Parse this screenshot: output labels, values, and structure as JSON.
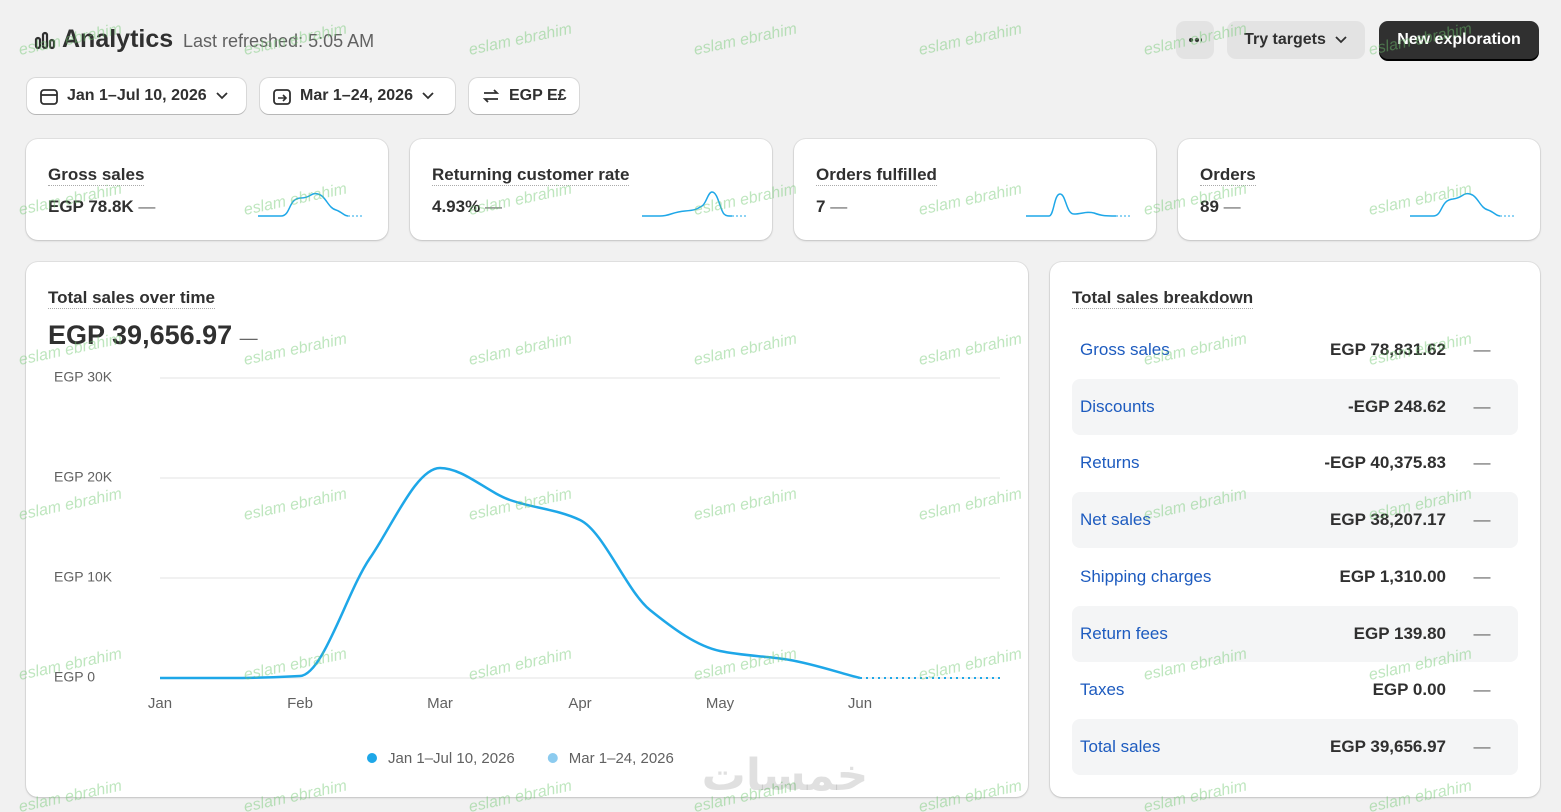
{
  "header": {
    "title": "Analytics",
    "last_refreshed": "Last refreshed: 5:05 AM",
    "try_targets": "Try targets",
    "new_exploration": "New exploration"
  },
  "filters": [
    "Jan 1–Jul 10, 2026",
    "Mar 1–24, 2026",
    "EGP E£"
  ],
  "kpis": [
    {
      "label": "Gross sales",
      "value": "EGP 78.8K",
      "change": "—"
    },
    {
      "label": "Returning customer rate",
      "value": "4.93%",
      "change": "—"
    },
    {
      "label": "Orders fulfilled",
      "value": "7",
      "change": "—"
    },
    {
      "label": "Orders",
      "value": "89",
      "change": "—"
    }
  ],
  "chart_data": {
    "type": "line",
    "title": "Total sales over time",
    "total": "EGP 39,656.97",
    "change": "—",
    "categories": [
      "Jan",
      null,
      "Feb",
      null,
      "Mar",
      null,
      "Apr",
      null,
      "May",
      null,
      "Jun"
    ],
    "series": [
      {
        "name": "Jan 1–Jul 10, 2026",
        "color": "#1ea7e8",
        "values": [
          0,
          0,
          200,
          12000,
          21000,
          17800,
          15800,
          6800,
          2700,
          1800,
          0
        ]
      },
      {
        "name": "Mar 1–24, 2026",
        "color": "#8ccbef"
      }
    ],
    "ylim": [
      0,
      30000
    ],
    "yticks": [
      {
        "value": 0,
        "label": "EGP 0"
      },
      {
        "value": 10000,
        "label": "EGP 10K"
      },
      {
        "value": 20000,
        "label": "EGP 20K"
      },
      {
        "value": 30000,
        "label": "EGP 30K"
      }
    ],
    "grid": true
  },
  "breakdown": {
    "title": "Total sales breakdown",
    "rows": [
      {
        "label": "Gross sales",
        "value": "EGP 78,831.62",
        "change": "—"
      },
      {
        "label": "Discounts",
        "value": "-EGP 248.62",
        "change": "—"
      },
      {
        "label": "Returns",
        "value": "-EGP 40,375.83",
        "change": "—"
      },
      {
        "label": "Net sales",
        "value": "EGP 38,207.17",
        "change": "—"
      },
      {
        "label": "Shipping charges",
        "value": "EGP 1,310.00",
        "change": "—"
      },
      {
        "label": "Return fees",
        "value": "EGP 139.80",
        "change": "—"
      },
      {
        "label": "Taxes",
        "value": "EGP 0.00",
        "change": "—"
      },
      {
        "label": "Total sales",
        "value": "EGP 39,656.97",
        "change": "—"
      }
    ]
  },
  "watermark": "eslam ebrahim",
  "logo": "خمسات"
}
